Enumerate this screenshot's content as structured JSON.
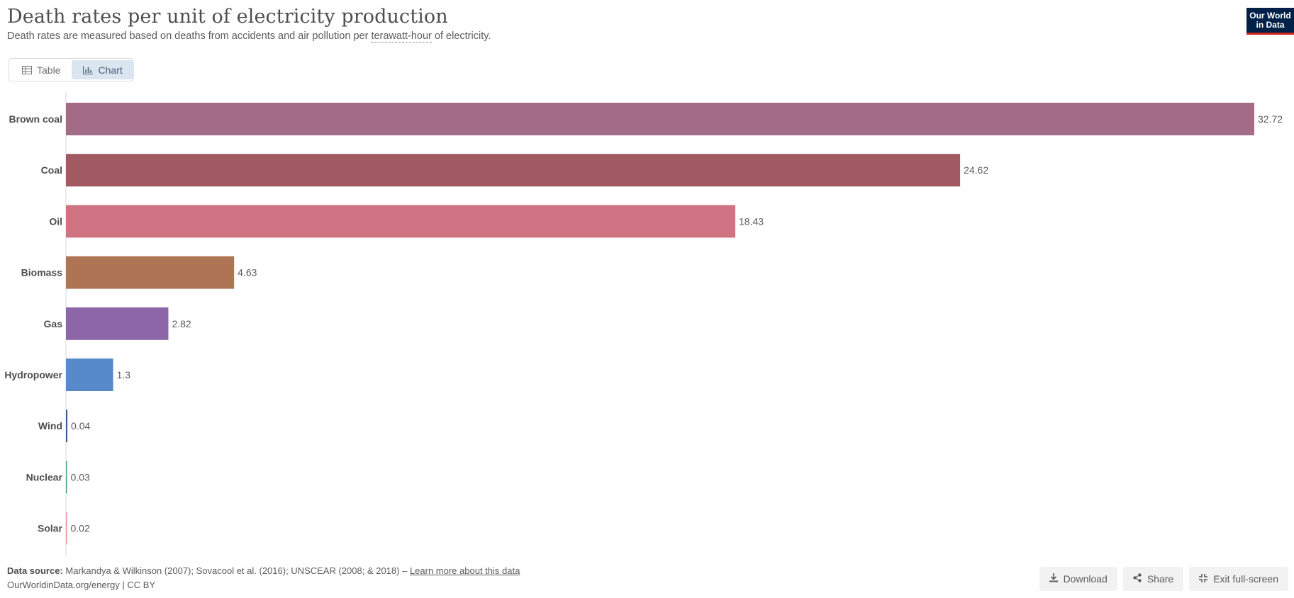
{
  "header": {
    "title": "Death rates per unit of electricity production",
    "subtitle_before": "Death rates are measured based on deaths from accidents and air pollution per ",
    "subtitle_term": "terawatt-hour",
    "subtitle_after": " of electricity.",
    "logo_line1": "Our World",
    "logo_line2": "in Data"
  },
  "tabs": [
    {
      "label": "Table",
      "icon": "table-icon",
      "active": false
    },
    {
      "label": "Chart",
      "icon": "chart-icon",
      "active": true
    }
  ],
  "chart_data": {
    "type": "bar",
    "orientation": "horizontal",
    "categories": [
      "Brown coal",
      "Coal",
      "Oil",
      "Biomass",
      "Gas",
      "Hydropower",
      "Wind",
      "Nuclear",
      "Solar"
    ],
    "values": [
      32.72,
      24.62,
      18.43,
      4.63,
      2.82,
      1.3,
      0.04,
      0.03,
      0.02
    ],
    "value_labels": [
      "32.72",
      "24.62",
      "18.43",
      "4.63",
      "2.82",
      "1.3",
      "0.04",
      "0.03",
      "0.02"
    ],
    "colors": [
      "#a36b86",
      "#a15a62",
      "#cf7282",
      "#af7454",
      "#8d66a9",
      "#578acb",
      "#3d5f8e",
      "#54a390",
      "#e49a9a"
    ],
    "xlim": [
      0,
      32.72
    ],
    "grid": false,
    "legend": "none"
  },
  "footer": {
    "source_label": "Data source:",
    "source_text": " Markandya & Wilkinson (2007); Sovacool et al. (2016); UNSCEAR (2008; & 2018) – ",
    "source_link": "Learn more about this data",
    "license": "OurWorldinData.org/energy | CC BY"
  },
  "actions": {
    "download": "Download",
    "share": "Share",
    "exit_fullscreen": "Exit full-screen"
  }
}
